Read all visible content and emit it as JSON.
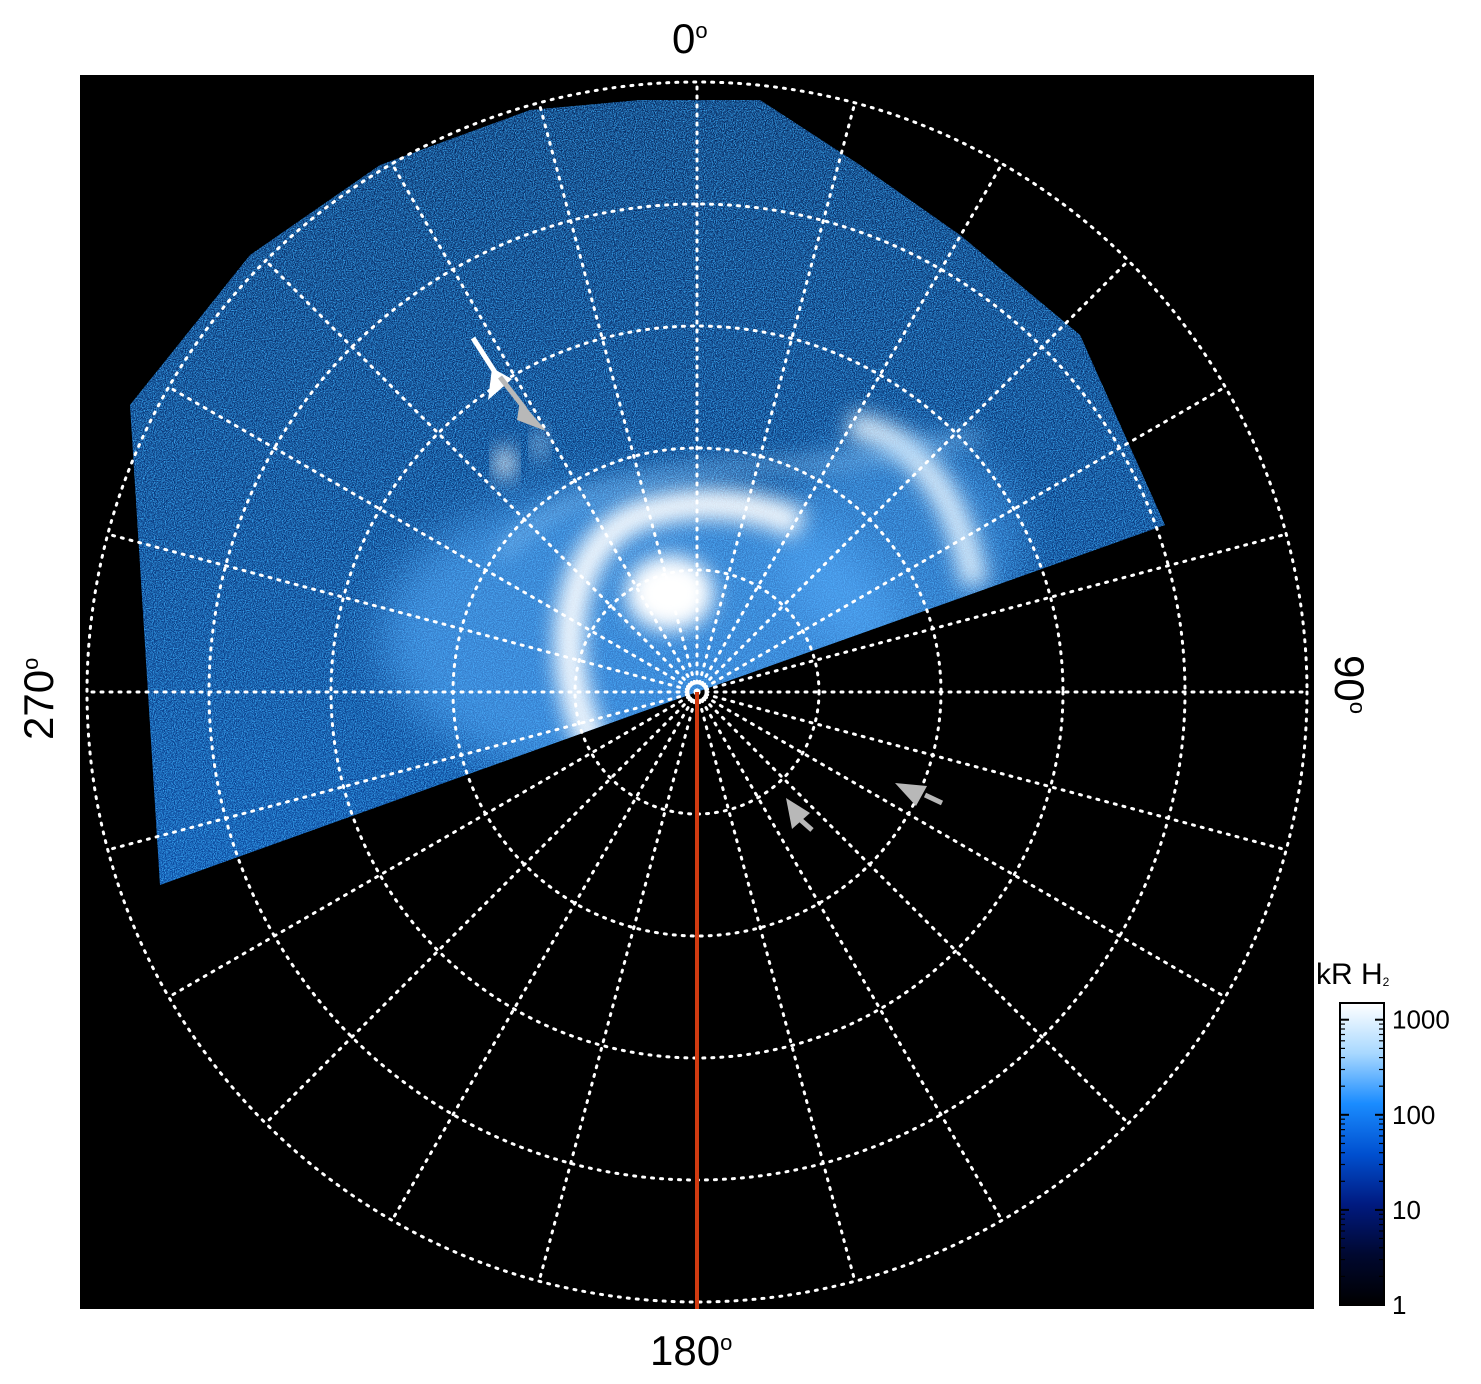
{
  "figure": {
    "labels": {
      "top": "0",
      "right": "90",
      "bottom": "180",
      "left": "270",
      "degree_symbol": "o"
    },
    "colorbar": {
      "title_main": "kR H",
      "title_sub": "2",
      "scale": "log",
      "ticks": [
        {
          "value": 1,
          "label": "1"
        },
        {
          "value": 10,
          "label": "10"
        },
        {
          "value": 100,
          "label": "100"
        },
        {
          "value": 1000,
          "label": "1000"
        }
      ],
      "range": [
        1,
        1500
      ],
      "colors": [
        "#000000",
        "#000830",
        "#001a80",
        "#0050d0",
        "#1a8cff",
        "#a8d8ff",
        "#ffffff"
      ]
    },
    "colors": {
      "background": "#000000",
      "grid": "#ffffff",
      "meridian_line": "#d03a10",
      "arrow_white": "#ffffff",
      "arrow_gray": "#b8b8b8"
    },
    "grid": {
      "style": "dotted",
      "rings": 5,
      "meridian_step_deg": 15
    },
    "arrows": [
      {
        "name": "white-arrow",
        "color": "white"
      },
      {
        "name": "gray-arrow-upper",
        "color": "gray"
      },
      {
        "name": "gray-arrow-lower-left",
        "color": "gray"
      },
      {
        "name": "gray-arrow-lower-right",
        "color": "gray"
      }
    ]
  }
}
